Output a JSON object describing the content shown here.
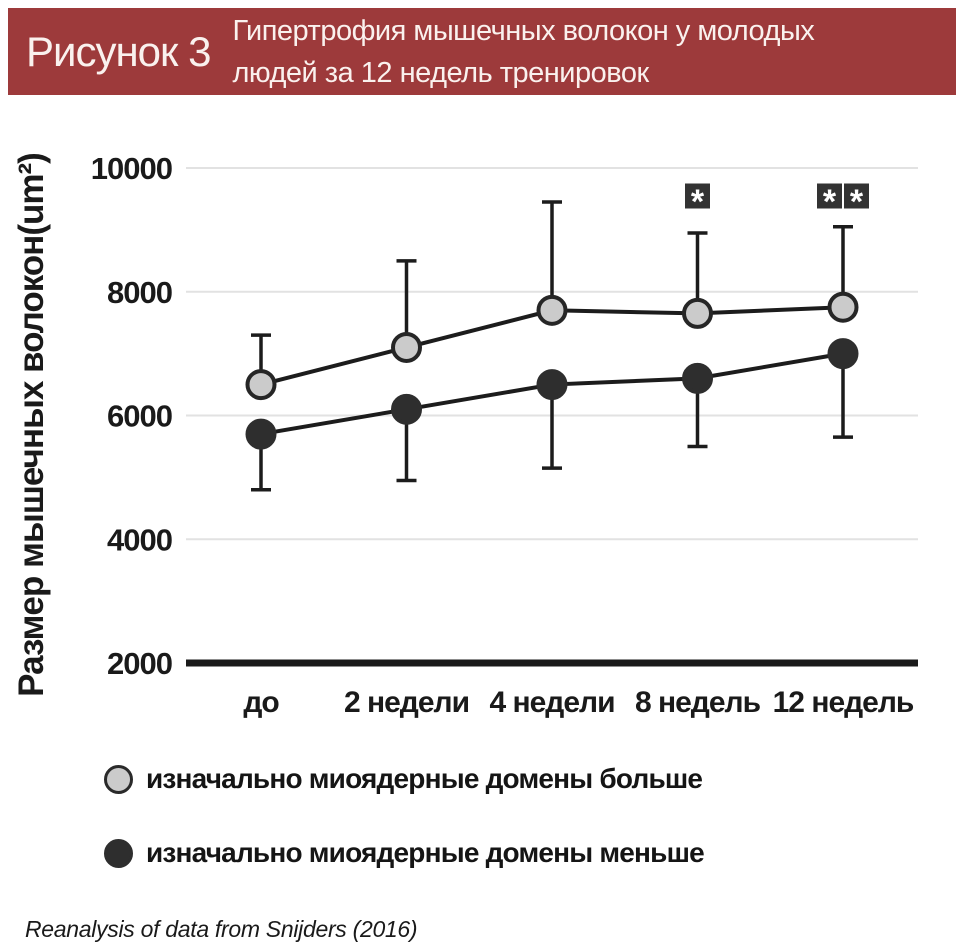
{
  "header": {
    "figure_label": "Рисунок 3",
    "title_line1": "Гипертрофия мышечных волокон у молодых",
    "title_line2": "людей за 12 недель тренировок",
    "background_color": "#9D3A3B",
    "text_color": "#FAF1EE"
  },
  "chart_data": {
    "type": "line",
    "categories": [
      "до",
      "2 недели",
      "4 недели",
      "8 недель",
      "12 недель"
    ],
    "series": [
      {
        "name": "изначально миоядерные домены больше",
        "values": [
          6500,
          7100,
          7700,
          7650,
          7750
        ],
        "error_top": [
          7300,
          8500,
          9450,
          8950,
          9050
        ],
        "marker_fill": "#CBCBCB",
        "marker_stroke": "#262626",
        "error_direction": "up"
      },
      {
        "name": "изначально миоядерные домены меньше",
        "values": [
          5700,
          6100,
          6500,
          6600,
          7000
        ],
        "error_bottom": [
          4800,
          4950,
          5150,
          5500,
          5650
        ],
        "marker_fill": "#2E2E2E",
        "marker_stroke": "#2E2E2E",
        "error_direction": "down"
      }
    ],
    "ylabel": "Размер мышечных волокон(um²)",
    "ylim": [
      2000,
      10000
    ],
    "yticks": [
      2000,
      4000,
      6000,
      8000,
      10000
    ],
    "grid": true,
    "legend_position": "bottom",
    "significance": [
      {
        "category_index": 3,
        "asterisks": 1
      },
      {
        "category_index": 4,
        "asterisks": 2
      }
    ],
    "significance_symbol": "*",
    "significance_box_color": "#333333",
    "line_color": "#1C1C1C",
    "grid_color": "#E2E2E2",
    "axis_color": "#1A1A1A"
  },
  "footer": {
    "source": "Reanalysis of data from Snijders (2016)"
  }
}
